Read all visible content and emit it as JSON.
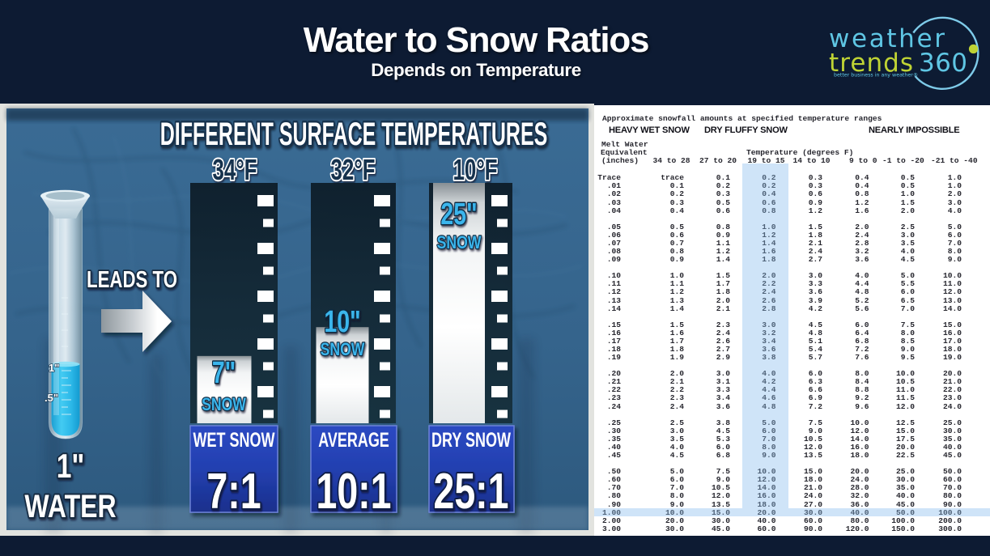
{
  "header": {
    "title": "Water to Snow Ratios",
    "subtitle": "Depends on Temperature"
  },
  "logo": {
    "word1": "weather",
    "word2": "trends",
    "word3": "360",
    "tagline": "better business in any weather®",
    "color_blue": "#5fc6e4",
    "color_green": "#bfd334"
  },
  "infographic": {
    "title": "DIFFERENT SURFACE TEMPERATURES",
    "leads_to": "LEADS TO",
    "gauge": {
      "amount": "1\"",
      "label": "WATER",
      "mark1": "1\"",
      "mark2": ".5\""
    },
    "snow_word": "SNOW",
    "columns": [
      {
        "temp": "34°F",
        "snow_amount": "7\"",
        "inches": 7,
        "category": "WET SNOW",
        "ratio": "7:1"
      },
      {
        "temp": "32°F",
        "snow_amount": "10\"",
        "inches": 10,
        "category": "AVERAGE",
        "ratio": "10:1"
      },
      {
        "temp": "10°F",
        "snow_amount": "25\"",
        "inches": 25,
        "category": "DRY SNOW",
        "ratio": "25:1"
      }
    ]
  },
  "chart_data": {
    "type": "table",
    "title": "Approximate snowfall amounts at specified temperature ranges",
    "category_headers": [
      "HEAVY WET SNOW",
      "DRY FLUFFY SNOW",
      "NEARLY IMPOSSIBLE"
    ],
    "row_header_lines": [
      "Melt Water",
      "Equivalent",
      "(inches)"
    ],
    "col_group_label": "Temperature (degrees F)",
    "columns": [
      "34 to 28",
      "27 to 20",
      "19 to 15",
      "14 to 10",
      "9 to 0",
      "-1 to -20",
      "-21 to -40"
    ],
    "highlight_column": "19 to 15",
    "highlight_row": "1.00",
    "row_groups": [
      [
        [
          "Trace",
          "trace",
          "0.1",
          "0.2",
          "0.3",
          "0.4",
          "0.5",
          "1.0"
        ],
        [
          ".01",
          "0.1",
          "0.2",
          "0.2",
          "0.3",
          "0.4",
          "0.5",
          "1.0"
        ],
        [
          ".02",
          "0.2",
          "0.3",
          "0.4",
          "0.6",
          "0.8",
          "1.0",
          "2.0"
        ],
        [
          ".03",
          "0.3",
          "0.5",
          "0.6",
          "0.9",
          "1.2",
          "1.5",
          "3.0"
        ],
        [
          ".04",
          "0.4",
          "0.6",
          "0.8",
          "1.2",
          "1.6",
          "2.0",
          "4.0"
        ]
      ],
      [
        [
          ".05",
          "0.5",
          "0.8",
          "1.0",
          "1.5",
          "2.0",
          "2.5",
          "5.0"
        ],
        [
          ".06",
          "0.6",
          "0.9",
          "1.2",
          "1.8",
          "2.4",
          "3.0",
          "6.0"
        ],
        [
          ".07",
          "0.7",
          "1.1",
          "1.4",
          "2.1",
          "2.8",
          "3.5",
          "7.0"
        ],
        [
          ".08",
          "0.8",
          "1.2",
          "1.6",
          "2.4",
          "3.2",
          "4.0",
          "8.0"
        ],
        [
          ".09",
          "0.9",
          "1.4",
          "1.8",
          "2.7",
          "3.6",
          "4.5",
          "9.0"
        ]
      ],
      [
        [
          ".10",
          "1.0",
          "1.5",
          "2.0",
          "3.0",
          "4.0",
          "5.0",
          "10.0"
        ],
        [
          ".11",
          "1.1",
          "1.7",
          "2.2",
          "3.3",
          "4.4",
          "5.5",
          "11.0"
        ],
        [
          ".12",
          "1.2",
          "1.8",
          "2.4",
          "3.6",
          "4.8",
          "6.0",
          "12.0"
        ],
        [
          ".13",
          "1.3",
          "2.0",
          "2.6",
          "3.9",
          "5.2",
          "6.5",
          "13.0"
        ],
        [
          ".14",
          "1.4",
          "2.1",
          "2.8",
          "4.2",
          "5.6",
          "7.0",
          "14.0"
        ]
      ],
      [
        [
          ".15",
          "1.5",
          "2.3",
          "3.0",
          "4.5",
          "6.0",
          "7.5",
          "15.0"
        ],
        [
          ".16",
          "1.6",
          "2.4",
          "3.2",
          "4.8",
          "6.4",
          "8.0",
          "16.0"
        ],
        [
          ".17",
          "1.7",
          "2.6",
          "3.4",
          "5.1",
          "6.8",
          "8.5",
          "17.0"
        ],
        [
          ".18",
          "1.8",
          "2.7",
          "3.6",
          "5.4",
          "7.2",
          "9.0",
          "18.0"
        ],
        [
          ".19",
          "1.9",
          "2.9",
          "3.8",
          "5.7",
          "7.6",
          "9.5",
          "19.0"
        ]
      ],
      [
        [
          ".20",
          "2.0",
          "3.0",
          "4.0",
          "6.0",
          "8.0",
          "10.0",
          "20.0"
        ],
        [
          ".21",
          "2.1",
          "3.1",
          "4.2",
          "6.3",
          "8.4",
          "10.5",
          "21.0"
        ],
        [
          ".22",
          "2.2",
          "3.3",
          "4.4",
          "6.6",
          "8.8",
          "11.0",
          "22.0"
        ],
        [
          ".23",
          "2.3",
          "3.4",
          "4.6",
          "6.9",
          "9.2",
          "11.5",
          "23.0"
        ],
        [
          ".24",
          "2.4",
          "3.6",
          "4.8",
          "7.2",
          "9.6",
          "12.0",
          "24.0"
        ]
      ],
      [
        [
          ".25",
          "2.5",
          "3.8",
          "5.0",
          "7.5",
          "10.0",
          "12.5",
          "25.0"
        ],
        [
          ".30",
          "3.0",
          "4.5",
          "6.0",
          "9.0",
          "12.0",
          "15.0",
          "30.0"
        ],
        [
          ".35",
          "3.5",
          "5.3",
          "7.0",
          "10.5",
          "14.0",
          "17.5",
          "35.0"
        ],
        [
          ".40",
          "4.0",
          "6.0",
          "8.0",
          "12.0",
          "16.0",
          "20.0",
          "40.0"
        ],
        [
          ".45",
          "4.5",
          "6.8",
          "9.0",
          "13.5",
          "18.0",
          "22.5",
          "45.0"
        ]
      ],
      [
        [
          ".50",
          "5.0",
          "7.5",
          "10.0",
          "15.0",
          "20.0",
          "25.0",
          "50.0"
        ],
        [
          ".60",
          "6.0",
          "9.0",
          "12.0",
          "18.0",
          "24.0",
          "30.0",
          "60.0"
        ],
        [
          ".70",
          "7.0",
          "10.5",
          "14.0",
          "21.0",
          "28.0",
          "35.0",
          "70.0"
        ],
        [
          ".80",
          "8.0",
          "12.0",
          "16.0",
          "24.0",
          "32.0",
          "40.0",
          "80.0"
        ],
        [
          ".90",
          "9.0",
          "13.5",
          "18.0",
          "27.0",
          "36.0",
          "45.0",
          "90.0"
        ],
        [
          "1.00",
          "10.0",
          "15.0",
          "20.0",
          "30.0",
          "40.0",
          "50.0",
          "100.0"
        ],
        [
          "2.00",
          "20.0",
          "30.0",
          "40.0",
          "60.0",
          "80.0",
          "100.0",
          "200.0"
        ],
        [
          "3.00",
          "30.0",
          "45.0",
          "60.0",
          "90.0",
          "120.0",
          "150.0",
          "300.0"
        ]
      ]
    ]
  },
  "colors": {
    "background": "#0d1b33",
    "photo_blue": "#35648c",
    "ratio_box_blue": "#2240b0",
    "cyan_text": "#3ab5ec",
    "highlight": "#cfe4f8"
  }
}
